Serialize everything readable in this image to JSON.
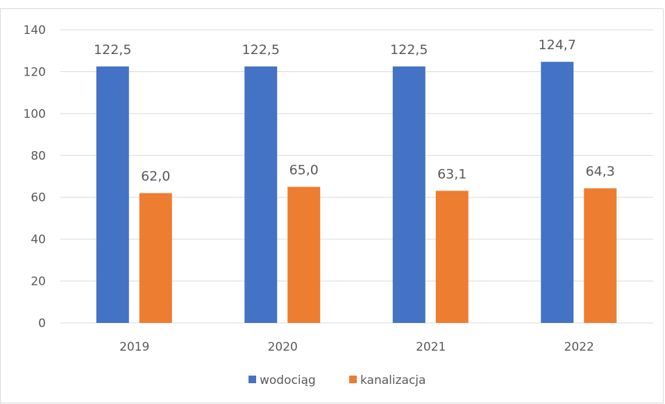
{
  "chart_title": "",
  "colors": {
    "wodociag": "#4472c4",
    "kanalizacja": "#ed7d31",
    "grid": "#d9d9d9",
    "text": "#595959",
    "title": "#2f6bbf"
  },
  "chart_data": {
    "type": "bar",
    "title": "",
    "xlabel": "",
    "ylabel": "",
    "categories": [
      "2019",
      "2020",
      "2021",
      "2022"
    ],
    "series": [
      {
        "name": "wodociąg",
        "values": [
          122.5,
          122.5,
          122.5,
          124.7
        ],
        "labels": [
          "122,5",
          "122,5",
          "122,5",
          "124,7"
        ]
      },
      {
        "name": "kanalizacja",
        "values": [
          62.0,
          65.0,
          63.1,
          64.3
        ],
        "labels": [
          "62,0",
          "65,0",
          "63,1",
          "64,3"
        ]
      }
    ],
    "ylim": [
      0,
      140
    ],
    "yticks": [
      "0",
      "20",
      "40",
      "60",
      "80",
      "100",
      "120",
      "140"
    ],
    "grid": true,
    "legend_position": "bottom"
  }
}
